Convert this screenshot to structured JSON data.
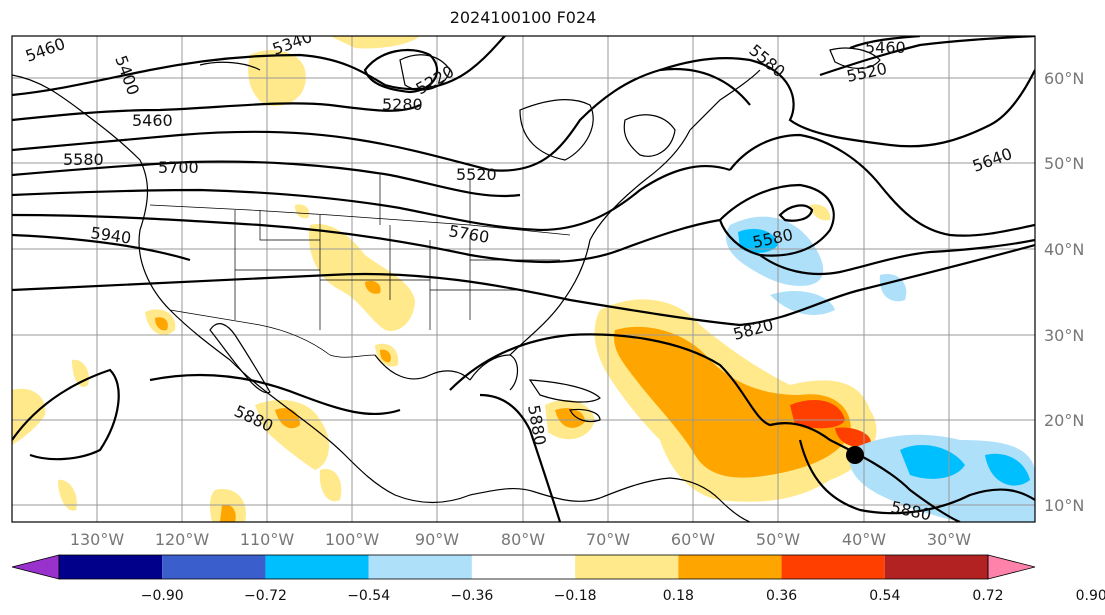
{
  "title": "2024100100 F024",
  "lat_ticks": [
    "60°N",
    "50°N",
    "40°N",
    "30°N",
    "20°N",
    "10°N"
  ],
  "lon_ticks": [
    "130°W",
    "120°W",
    "110°W",
    "100°W",
    "90°W",
    "80°W",
    "70°W",
    "60°W",
    "50°W",
    "40°W",
    "30°W"
  ],
  "contour_labels": [
    "5460",
    "5400",
    "5340",
    "5220",
    "5280",
    "5460",
    "5580",
    "5700",
    "5520",
    "5940",
    "5760",
    "5580",
    "5460",
    "5520",
    "5640",
    "5580",
    "5820",
    "5880",
    "5880",
    "5880"
  ],
  "colorbar": {
    "ticks": [
      "−0.90",
      "−0.72",
      "−0.54",
      "−0.36",
      "−0.18",
      "0.18",
      "0.36",
      "0.54",
      "0.72",
      "0.90"
    ],
    "colors": [
      "#9932cc",
      "#00008b",
      "#3a5fcd",
      "#00bfff",
      "#afe0fa",
      "#ffffff",
      "#ffe98a",
      "#ffa500",
      "#ff3f00",
      "#b22222",
      "#ff82ab"
    ]
  }
}
